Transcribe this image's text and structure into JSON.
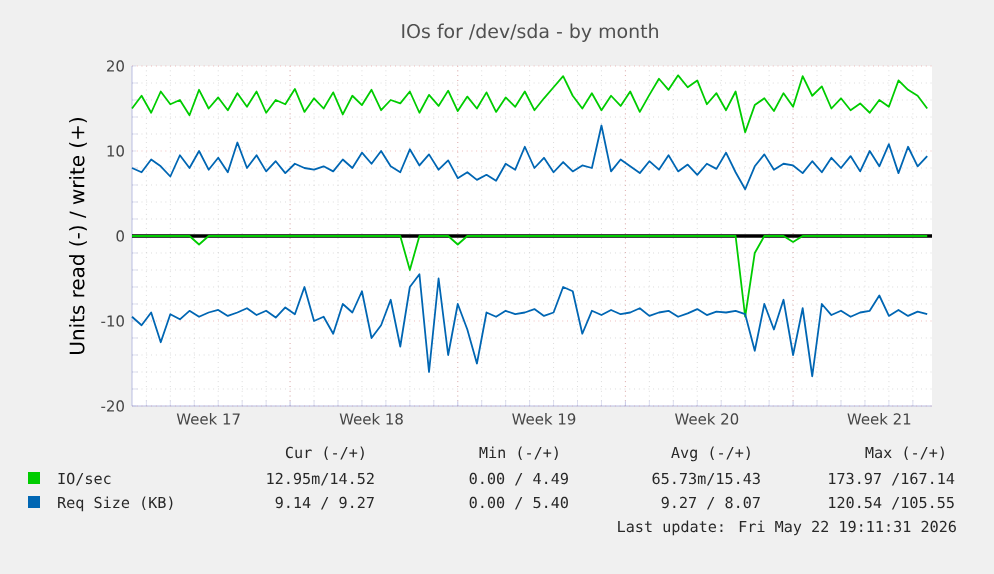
{
  "chart_data": {
    "type": "line",
    "title": "IOs for /dev/sda - by month",
    "ylabel": "Units read (-) / write (+)",
    "categories": [
      null,
      null,
      null,
      null,
      null,
      null,
      null,
      null,
      "Week 17",
      null,
      null,
      null,
      null,
      null,
      null,
      null,
      null,
      null,
      null,
      null,
      null,
      null,
      null,
      null,
      null,
      "Week 18",
      null,
      null,
      null,
      null,
      null,
      null,
      null,
      null,
      null,
      null,
      null,
      null,
      null,
      null,
      null,
      null,
      null,
      "Week 19",
      null,
      null,
      null,
      null,
      null,
      null,
      null,
      null,
      null,
      null,
      null,
      null,
      null,
      null,
      null,
      null,
      "Week 20",
      null,
      null,
      null,
      null,
      null,
      null,
      null,
      null,
      null,
      null,
      null,
      null,
      null,
      null,
      null,
      null,
      null,
      "Week 21",
      null,
      null,
      null,
      null,
      null
    ],
    "series": [
      {
        "name": "IO/sec",
        "color": "#00cc00",
        "values": [
          15,
          16.5,
          14.5,
          17,
          15.5,
          16,
          14.2,
          17.2,
          15,
          16.3,
          14.8,
          16.8,
          15.2,
          17,
          14.5,
          16,
          15.5,
          17.3,
          14.6,
          16.2,
          15,
          16.9,
          14.3,
          16.5,
          15.4,
          17.2,
          14.8,
          16,
          15.6,
          17,
          14.5,
          16.6,
          15.3,
          17.1,
          14.7,
          16.4,
          15,
          16.9,
          14.6,
          16.3,
          15.2,
          17,
          14.8,
          16.2,
          17.5,
          18.8,
          16.5,
          15,
          16.8,
          14.8,
          16.5,
          15.3,
          17,
          14.6,
          16.6,
          18.5,
          17.2,
          18.9,
          17.5,
          18.3,
          15.5,
          16.8,
          14.8,
          17,
          12.2,
          15.4,
          16.2,
          14.7,
          16.8,
          15.2,
          18.8,
          16.5,
          17.6,
          15,
          16.2,
          14.8,
          15.6,
          14.5,
          16,
          15.2,
          18.3,
          17.2,
          16.5,
          15
        ]
      },
      {
        "color": "#00cc00",
        "values": [
          0,
          0,
          0,
          0,
          0,
          0,
          0,
          -1,
          0,
          0,
          0,
          0,
          0,
          0,
          0,
          0,
          0,
          0,
          0,
          0,
          0,
          0,
          0,
          0,
          0,
          0,
          0,
          0,
          0,
          -4,
          0,
          0,
          0,
          0,
          -1,
          0,
          0,
          0,
          0,
          0,
          0,
          0,
          0,
          0,
          0,
          0,
          0,
          0,
          0,
          0,
          0,
          0,
          0,
          0,
          0,
          0,
          0,
          0,
          0,
          0,
          0,
          0,
          0,
          0,
          -9.5,
          -2,
          0,
          0,
          0,
          -0.7,
          0,
          0,
          0,
          0,
          0,
          0,
          0,
          0,
          0,
          0,
          0,
          0,
          0,
          0
        ]
      },
      {
        "name": "Req Size (KB)",
        "color": "#0066b3",
        "values": [
          8,
          7.5,
          9,
          8.2,
          7,
          9.5,
          8,
          10,
          7.8,
          9.2,
          7.5,
          11,
          8,
          9.5,
          7.6,
          8.8,
          7.4,
          8.5,
          8,
          7.8,
          8.2,
          7.6,
          9,
          8,
          9.8,
          8.5,
          10,
          8.2,
          7.5,
          10.2,
          8.3,
          9.6,
          7.8,
          8.9,
          6.8,
          7.5,
          6.6,
          7.2,
          6.5,
          8.5,
          7.8,
          10.5,
          8,
          9.2,
          7.5,
          8.7,
          7.6,
          8.3,
          8,
          13,
          7.6,
          9,
          8.2,
          7.4,
          8.8,
          7.8,
          9.5,
          7.6,
          8.4,
          7.2,
          8.5,
          7.9,
          9.8,
          7.5,
          5.5,
          8.2,
          9.6,
          7.8,
          8.5,
          8.3,
          7.4,
          8.8,
          7.5,
          9.2,
          8,
          9.4,
          7.6,
          10,
          8.2,
          10.8,
          7.4,
          10.5,
          8.2,
          9.4
        ]
      },
      {
        "color": "#0066b3",
        "values": [
          -9.5,
          -10.5,
          -9,
          -12.5,
          -9.2,
          -9.8,
          -8.8,
          -9.5,
          -9,
          -8.7,
          -9.4,
          -9,
          -8.5,
          -9.3,
          -8.8,
          -9.6,
          -8.4,
          -9.2,
          -6,
          -10,
          -9.5,
          -11.5,
          -8,
          -9,
          -6.5,
          -12,
          -10.5,
          -7.5,
          -13,
          -6,
          -4.5,
          -16,
          -5,
          -14,
          -8,
          -11,
          -15,
          -9,
          -9.5,
          -8.8,
          -9.2,
          -9,
          -8.6,
          -9.4,
          -9,
          -6,
          -6.5,
          -11.5,
          -8.8,
          -9.3,
          -8.7,
          -9.2,
          -9,
          -8.5,
          -9.4,
          -9,
          -8.8,
          -9.5,
          -9.1,
          -8.6,
          -9.3,
          -8.9,
          -9,
          -8.8,
          -9.2,
          -13.5,
          -8,
          -11,
          -7.5,
          -14,
          -8.5,
          -16.5,
          -8,
          -9.3,
          -8.8,
          -9.5,
          -9,
          -8.8,
          -7,
          -9.4,
          -8.7,
          -9.4,
          -8.9,
          -9.2
        ]
      }
    ],
    "ylim": [
      -20,
      20
    ],
    "yticks": [
      -20,
      -10,
      0,
      10,
      20
    ],
    "ref_lines": [
      {
        "axis": "y",
        "value": 0,
        "color": "#000000"
      }
    ],
    "grid": true,
    "legend": "bottom",
    "annotations": [
      "Cur (-/+)",
      "Min (-/+)",
      "Avg (-/+)",
      "Max (-/+)",
      "12.95m/14.52",
      "0.00 / 4.49",
      "65.73m/15.43",
      "173.97 /167.14",
      "9.14 / 9.27",
      "0.00 / 5.40",
      "9.27 / 8.07",
      "120.54 /105.55",
      "Last update: Fri May 22 19:11:31 2026"
    ]
  }
}
